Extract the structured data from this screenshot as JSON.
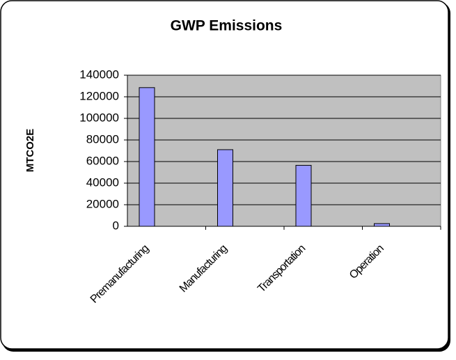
{
  "chart_data": {
    "type": "bar",
    "title": "GWP Emissions",
    "y_label": "MTCO2E",
    "categories": [
      "Premanufacturing",
      "Manufacturing",
      "Transportation",
      "Operation"
    ],
    "values": [
      128500,
      71000,
      56500,
      2500
    ],
    "color": "#9999ff",
    "ylim": [
      0,
      140000
    ],
    "yticks": [
      0,
      20000,
      40000,
      60000,
      80000,
      100000,
      120000,
      140000
    ],
    "grid": true,
    "plot_background": "#c0c0c0"
  }
}
